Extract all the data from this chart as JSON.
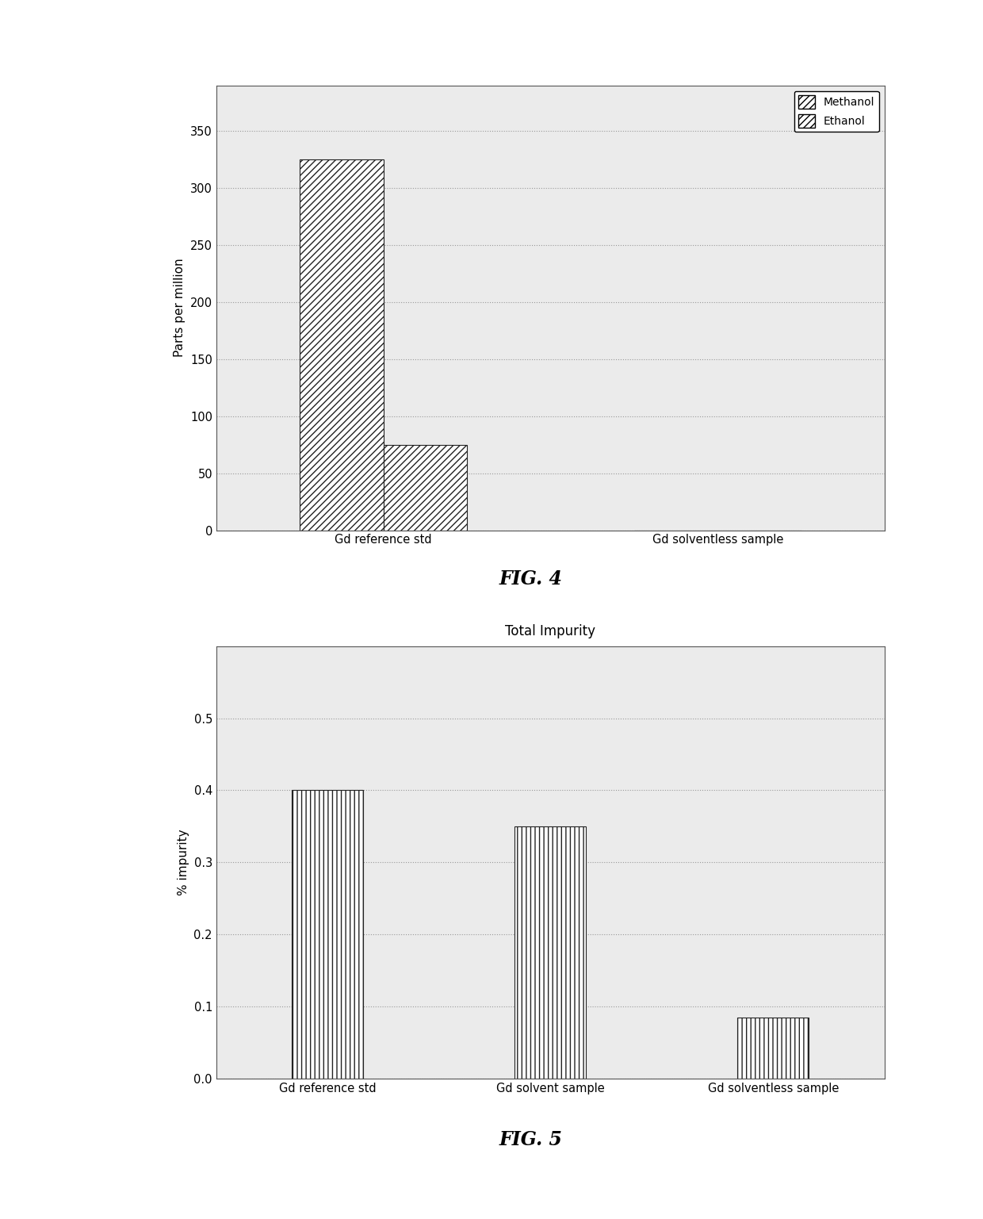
{
  "fig4": {
    "categories": [
      "Gd reference std",
      "Gd solventless sample"
    ],
    "methanol_values": [
      325,
      0
    ],
    "ethanol_values": [
      75,
      0
    ],
    "ylabel": "Parts per million",
    "ylim": [
      0,
      390
    ],
    "yticks": [
      0,
      50,
      100,
      150,
      200,
      250,
      300,
      350
    ],
    "fig_label": "FIG. 4",
    "legend_methanol": "Methanol",
    "legend_ethanol": "Ethanol"
  },
  "fig5": {
    "categories": [
      "Gd reference std",
      "Gd solvent sample",
      "Gd solventless sample"
    ],
    "values": [
      0.4,
      0.35,
      0.085
    ],
    "ylabel": "% impurity",
    "title": "Total Impurity",
    "ylim": [
      0,
      0.6
    ],
    "yticks": [
      0,
      0.1,
      0.2,
      0.3,
      0.4,
      0.5
    ],
    "fig_label": "FIG. 5"
  },
  "background_color": "#ebebeb",
  "bar_edge_color": "#222222",
  "bar_color": "#ffffff",
  "grid_color": "#999999",
  "text_color": "#000000"
}
